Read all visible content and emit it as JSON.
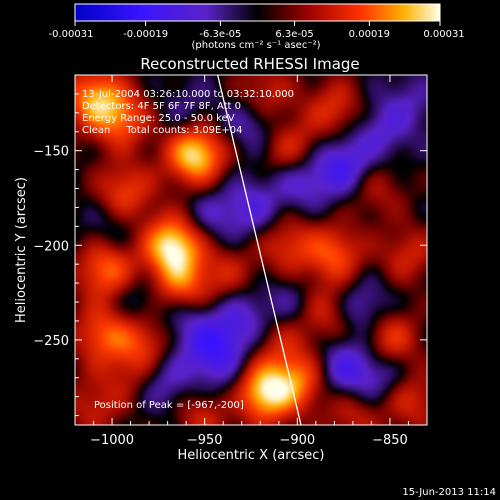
{
  "chart_data": {
    "type": "heatmap",
    "title": "Reconstructed RHESSI Image",
    "xlabel": "Heliocentric X (arcsec)",
    "ylabel": "Heliocentric Y (arcsec)",
    "xlim": [
      -1020,
      -830
    ],
    "ylim": [
      -295,
      -110
    ],
    "xticks": [
      -1000,
      -950,
      -900,
      -850
    ],
    "yticks": [
      -150,
      -200,
      -250
    ],
    "colorbar": {
      "range": [
        -0.00031,
        0.00031
      ],
      "ticks": [
        -0.00031,
        -0.00019,
        -6.3e-05,
        6.3e-05,
        0.00019,
        0.00031
      ],
      "tick_labels": [
        "-0.00031",
        "-0.00019",
        "-6.3e-05",
        "6.3e-05",
        "0.00019",
        "0.00031"
      ],
      "units": "(photons cm⁻² s⁻¹ asec⁻²)"
    },
    "annotations": [
      "13-Jul-2004 03:26:10.000 to 03:32:10.000",
      "Detectors: 4F 5F 6F 7F 8F, Att 0",
      "Energy Range: 25.0 - 50.0 keV",
      "Clean     Total counts: 3.09E+04"
    ],
    "peak": {
      "label": "Position of Peak = [-967,-200]",
      "x": -967,
      "y": -200
    },
    "limb_line": [
      [
        -943,
        -110
      ],
      [
        -898,
        -295
      ]
    ],
    "blobs": [
      {
        "x": -1010,
        "y": -122,
        "v": 0.00022
      },
      {
        "x": -995,
        "y": -133,
        "v": 0.00018
      },
      {
        "x": -955,
        "y": -152,
        "v": 0.0003
      },
      {
        "x": -993,
        "y": -172,
        "v": 0.00016
      },
      {
        "x": -967,
        "y": -200,
        "v": 0.00031
      },
      {
        "x": -1003,
        "y": -213,
        "v": 0.0002
      },
      {
        "x": -963,
        "y": -222,
        "v": 0.00018
      },
      {
        "x": -1005,
        "y": -247,
        "v": 0.00017
      },
      {
        "x": -982,
        "y": -250,
        "v": 0.00014
      },
      {
        "x": -938,
        "y": -215,
        "v": 0.0001
      },
      {
        "x": -918,
        "y": -120,
        "v": 0.00012
      },
      {
        "x": -903,
        "y": -150,
        "v": 0.00014
      },
      {
        "x": -880,
        "y": -128,
        "v": 0.00013
      },
      {
        "x": -858,
        "y": -170,
        "v": 9e-05
      },
      {
        "x": -840,
        "y": -205,
        "v": 0.00011
      },
      {
        "x": -880,
        "y": -205,
        "v": 0.00017
      },
      {
        "x": -905,
        "y": -200,
        "v": 0.00013
      },
      {
        "x": -884,
        "y": -236,
        "v": 0.00012
      },
      {
        "x": -910,
        "y": -248,
        "v": 0.0001
      },
      {
        "x": -850,
        "y": -250,
        "v": 0.00016
      },
      {
        "x": -838,
        "y": -282,
        "v": 0.00012
      },
      {
        "x": -918,
        "y": -278,
        "v": 0.0003
      },
      {
        "x": -899,
        "y": -271,
        "v": 0.00018
      },
      {
        "x": -950,
        "y": -290,
        "v": 0.00012
      },
      {
        "x": -1010,
        "y": -285,
        "v": 0.0001
      },
      {
        "x": -870,
        "y": -290,
        "v": 0.0001
      },
      {
        "x": -990,
        "y": -268,
        "v": 8e-05
      },
      {
        "x": -945,
        "y": -257,
        "v": -0.00016
      },
      {
        "x": -925,
        "y": -135,
        "v": -0.0001
      },
      {
        "x": -875,
        "y": -158,
        "v": -0.00016
      },
      {
        "x": -898,
        "y": -165,
        "v": -0.00012
      },
      {
        "x": -855,
        "y": -140,
        "v": -9e-05
      },
      {
        "x": -925,
        "y": -180,
        "v": -0.00011
      },
      {
        "x": -948,
        "y": -185,
        "v": -8e-05
      },
      {
        "x": -960,
        "y": -130,
        "v": -6e-05
      },
      {
        "x": -865,
        "y": -233,
        "v": -0.00011
      },
      {
        "x": -905,
        "y": -232,
        "v": -8e-05
      },
      {
        "x": -930,
        "y": -240,
        "v": -0.00012
      },
      {
        "x": -960,
        "y": -240,
        "v": -0.0001
      },
      {
        "x": -875,
        "y": -265,
        "v": -0.00014
      },
      {
        "x": -1000,
        "y": -190,
        "v": -6e-05
      },
      {
        "x": -985,
        "y": -230,
        "v": -8e-05
      },
      {
        "x": -972,
        "y": -272,
        "v": -0.0001
      },
      {
        "x": -855,
        "y": -268,
        "v": -0.0001
      },
      {
        "x": -840,
        "y": -125,
        "v": -7e-05
      },
      {
        "x": -935,
        "y": -280,
        "v": -6e-05
      }
    ]
  },
  "footer": {
    "date": "15-Jun-2013 11:14"
  }
}
